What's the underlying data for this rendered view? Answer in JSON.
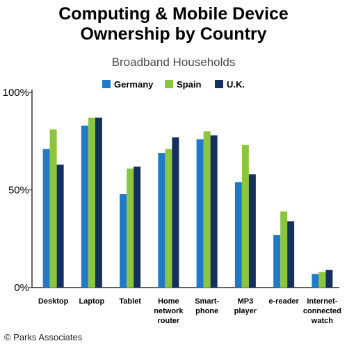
{
  "chart_data": {
    "type": "bar",
    "title_lines": [
      "Computing & Mobile Device",
      "Ownership by Country"
    ],
    "subtitle": "Broadband Households",
    "categories": [
      [
        "Desktop"
      ],
      [
        "Laptop"
      ],
      [
        "Tablet"
      ],
      [
        "Home",
        "network",
        "router"
      ],
      [
        "Smart-",
        "phone"
      ],
      [
        "MP3",
        "player"
      ],
      [
        "e-reader"
      ],
      [
        "Internet-",
        "connected",
        "watch"
      ]
    ],
    "series": [
      {
        "name": "Germany",
        "color": "#1f7ac8",
        "values": [
          71,
          83,
          48,
          69,
          76,
          54,
          27,
          7
        ]
      },
      {
        "name": "Spain",
        "color": "#8cc63f",
        "values": [
          81,
          87,
          61,
          71,
          80,
          73,
          39,
          8
        ]
      },
      {
        "name": "U.K.",
        "color": "#16305c",
        "values": [
          63,
          87,
          62,
          77,
          78,
          58,
          34,
          9
        ]
      }
    ],
    "ylim": [
      0,
      100
    ],
    "yticks": [
      {
        "value": 0,
        "label": "0%"
      },
      {
        "value": 50,
        "label": "50%"
      },
      {
        "value": 100,
        "label": "100%"
      }
    ],
    "legend_position": "top-center",
    "grid": false,
    "xlabel": "",
    "ylabel": ""
  },
  "footer": {
    "copyright": "© Parks Associates"
  }
}
